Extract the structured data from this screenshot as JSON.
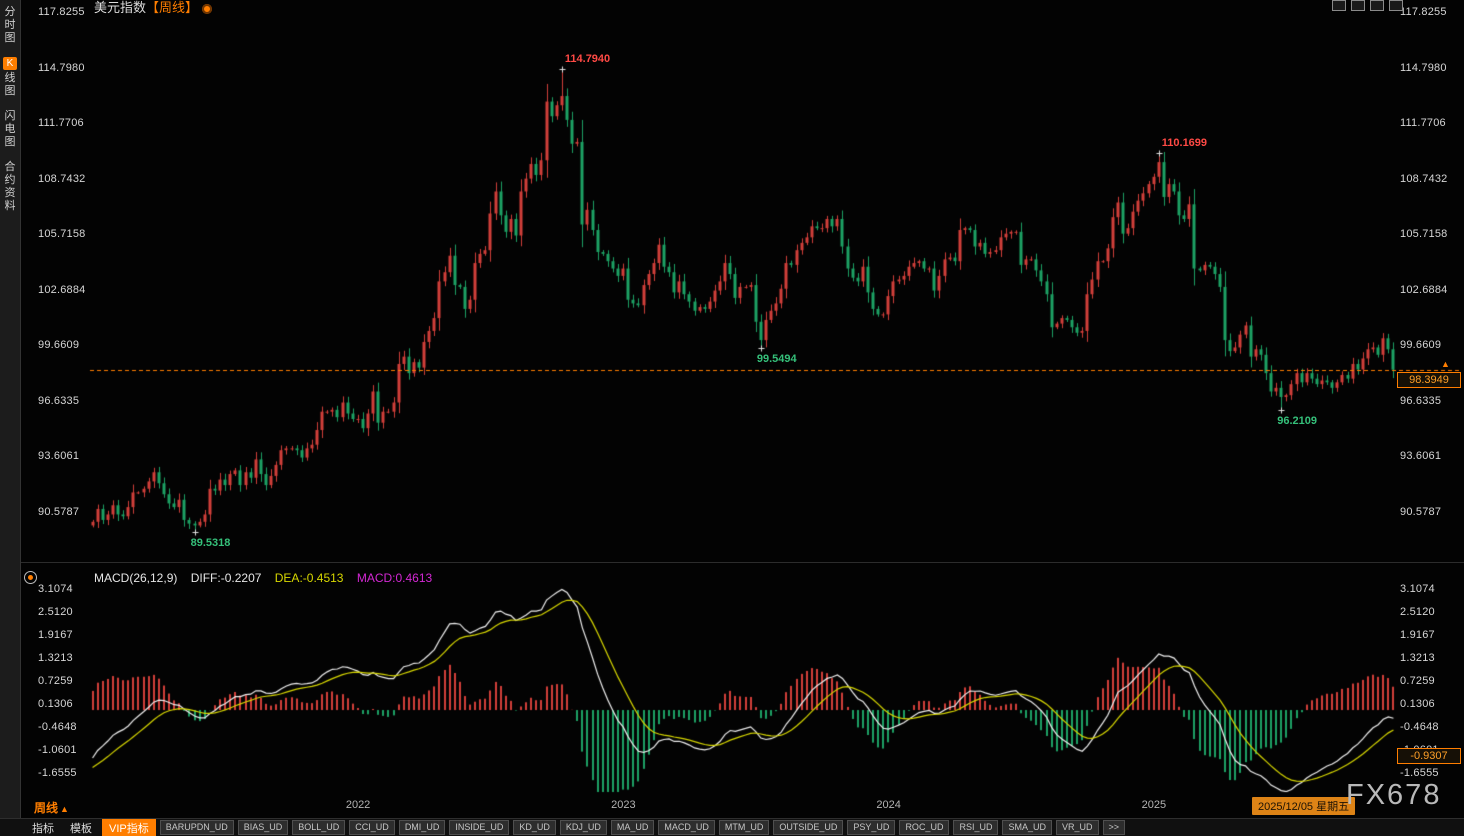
{
  "header": {
    "title": "美元指数",
    "period_tag": "【周线】"
  },
  "sidebar": {
    "items": [
      {
        "label": "分时图",
        "key": "time-chart",
        "active": false
      },
      {
        "label": "K线图",
        "key": "kline-chart",
        "active": true
      },
      {
        "label": "闪电图",
        "key": "flash-chart",
        "active": false
      },
      {
        "label": "合约资料",
        "key": "contract-info",
        "active": false
      }
    ]
  },
  "price_axis": {
    "max": 117.8255,
    "min": 90.5787,
    "labels": [
      "117.8255",
      "114.7980",
      "111.7706",
      "108.7432",
      "105.7158",
      "102.6884",
      "99.6609",
      "96.6335",
      "93.6061",
      "90.5787"
    ]
  },
  "macd_axis": {
    "max": 3.1074,
    "min": -1.6555,
    "labels": [
      "3.1074",
      "2.5120",
      "1.9167",
      "1.3213",
      "0.7259",
      "0.1306",
      "-0.4648",
      "-1.0601",
      "-1.6555"
    ]
  },
  "macd_header": {
    "name": "MACD(26,12,9)",
    "diff_label": "DIFF:-0.2207",
    "dea_label": "DEA:-0.4513",
    "macd_label": "MACD:0.4613"
  },
  "current_price": {
    "value": "98.3949",
    "line_value": 98.3949
  },
  "macd_current": {
    "value": "-0.9307",
    "line_value": -0.9307
  },
  "status_bar": {
    "period": "周线",
    "date": "2025/12/05 星期五"
  },
  "watermark": "FX678",
  "bottom_toolbar": {
    "tabs": [
      "指标",
      "模板"
    ],
    "vip": "VIP指标",
    "indicators": [
      "BARUPDN_UD",
      "BIAS_UD",
      "BOLL_UD",
      "CCI_UD",
      "DMI_UD",
      "INSIDE_UD",
      "KD_UD",
      "KDJ_UD",
      "MA_UD",
      "MACD_UD",
      "MTM_UD",
      "OUTSIDE_UD",
      "PSY_UD",
      "ROC_UD",
      "RSI_UD",
      "SMA_UD",
      "VR_UD"
    ],
    "more": ">>"
  },
  "colors": {
    "up": "#d23f3a",
    "down": "#1da164",
    "accent": "#ff7e00",
    "diff_line": "#f0f0f0",
    "dea_line": "#d8d800",
    "macd_value_text": "#d428d4",
    "axis_text": "#d6d6d6"
  },
  "chart_data": {
    "type": "candlestick",
    "title": "美元指数 周线",
    "indicator": "MACD(26,12,9)",
    "macd_params": [
      26,
      12,
      9
    ],
    "x_years": [
      {
        "label": "2022",
        "week_index": 52
      },
      {
        "label": "2023",
        "week_index": 104
      },
      {
        "label": "2024",
        "week_index": 156
      },
      {
        "label": "2025",
        "week_index": 208
      }
    ],
    "closes": [
      90.1,
      90.8,
      90.2,
      90.5,
      91.0,
      90.5,
      90.4,
      90.9,
      91.7,
      91.7,
      91.9,
      92.3,
      92.8,
      92.2,
      91.6,
      91.1,
      90.9,
      91.3,
      90.2,
      90.0,
      89.9,
      90.1,
      90.5,
      91.9,
      91.8,
      92.4,
      92.1,
      92.7,
      92.9,
      92.1,
      92.8,
      92.5,
      93.5,
      92.7,
      92.1,
      92.6,
      93.2,
      94.0,
      94.1,
      94.1,
      94.0,
      93.6,
      94.1,
      94.3,
      95.1,
      96.1,
      96.1,
      96.2,
      95.8,
      96.6,
      96.0,
      95.7,
      95.7,
      95.2,
      96.0,
      97.2,
      95.5,
      96.1,
      96.1,
      96.6,
      98.7,
      99.1,
      98.2,
      98.8,
      98.5,
      99.9,
      100.5,
      101.2,
      103.2,
      103.7,
      104.6,
      103.0,
      102.9,
      101.7,
      102.2,
      104.2,
      104.7,
      104.9,
      106.9,
      108.1,
      106.8,
      105.9,
      106.6,
      105.7,
      108.1,
      108.8,
      109.6,
      109.0,
      109.8,
      113.0,
      112.2,
      112.8,
      113.3,
      112.0,
      110.7,
      110.8,
      106.3,
      107.1,
      106.0,
      104.8,
      104.7,
      104.3,
      103.9,
      103.5,
      103.9,
      102.2,
      102.0,
      101.9,
      103.0,
      103.6,
      104.2,
      105.2,
      104.0,
      103.7,
      102.6,
      103.2,
      102.5,
      102.1,
      101.6,
      101.8,
      101.7,
      102.1,
      102.7,
      103.2,
      104.2,
      103.6,
      102.3,
      102.9,
      102.9,
      103.0,
      101.0,
      100.0,
      101.1,
      101.6,
      102.0,
      102.8,
      104.2,
      104.1,
      104.9,
      105.3,
      105.6,
      106.2,
      106.1,
      106.1,
      106.6,
      106.2,
      106.6,
      105.1,
      103.9,
      103.4,
      103.2,
      104.0,
      102.6,
      101.7,
      101.4,
      101.4,
      102.4,
      103.2,
      103.3,
      103.5,
      104.0,
      104.2,
      104.3,
      103.9,
      103.9,
      102.7,
      103.5,
      104.4,
      104.5,
      104.3,
      106.0,
      106.1,
      106.0,
      105.1,
      105.3,
      104.7,
      104.8,
      104.9,
      105.6,
      105.8,
      105.9,
      105.9,
      104.1,
      104.4,
      104.4,
      103.8,
      103.2,
      102.5,
      100.7,
      100.9,
      101.2,
      101.1,
      100.7,
      100.4,
      100.5,
      102.5,
      103.3,
      104.3,
      104.3,
      105.0,
      106.7,
      107.5,
      105.8,
      106.1,
      107.0,
      107.6,
      108.0,
      108.5,
      108.9,
      109.7,
      107.8,
      108.5,
      108.1,
      106.8,
      106.6,
      107.4,
      103.9,
      103.8,
      104.1,
      104.0,
      103.6,
      102.9,
      100.0,
      99.4,
      99.6,
      100.3,
      100.8,
      99.1,
      99.5,
      99.2,
      98.2,
      97.2,
      97.4,
      96.9,
      97.0,
      97.6,
      98.2,
      97.7,
      98.2,
      97.9,
      97.6,
      97.8,
      97.7,
      97.4,
      97.7,
      98.1,
      97.9,
      98.7,
      98.4,
      99.0,
      99.5,
      99.6,
      99.2,
      100.1,
      99.5,
      98.39
    ],
    "markers": [
      {
        "index": 20,
        "type": "low",
        "price": 89.5318,
        "label": "89.5318"
      },
      {
        "index": 92,
        "type": "high",
        "price": 114.794,
        "label": "114.7940"
      },
      {
        "index": 131,
        "type": "low",
        "price": 99.5494,
        "label": "99.5494"
      },
      {
        "index": 209,
        "type": "high",
        "price": 110.1699,
        "label": "110.1699"
      },
      {
        "index": 233,
        "type": "low",
        "price": 96.2109,
        "label": "96.2109"
      }
    ],
    "last_close": 98.3949
  }
}
